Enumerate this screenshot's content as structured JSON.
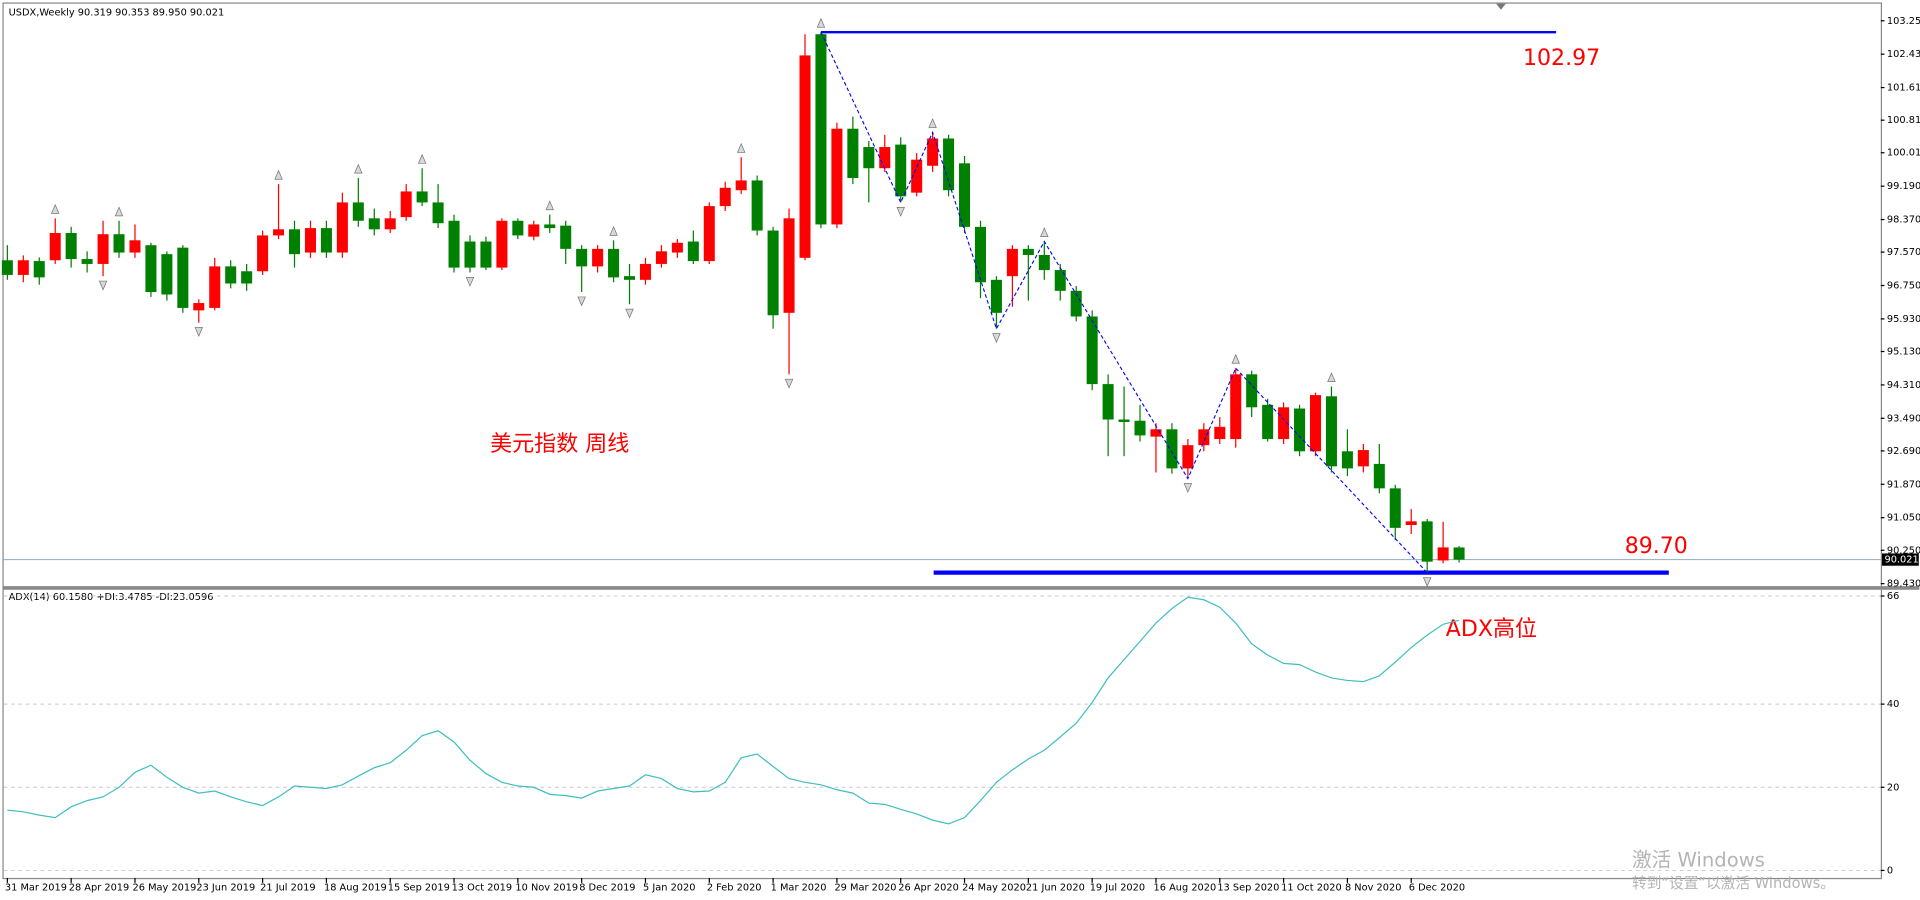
{
  "chart_data": [
    {
      "type": "candlestick",
      "title": "USDX,Weekly  90.319 90.353 89.950 90.021",
      "annotations": [
        "美元指数 周线"
      ],
      "categories": [
        "31 Mar 2019",
        null,
        null,
        null,
        "28 Apr 2019",
        null,
        null,
        null,
        "26 May 2019",
        null,
        null,
        null,
        "23 Jun 2019",
        null,
        null,
        null,
        "21 Jul 2019",
        null,
        null,
        null,
        "18 Aug 2019",
        null,
        null,
        null,
        "15 Sep 2019",
        null,
        null,
        null,
        "13 Oct 2019",
        null,
        null,
        null,
        "10 Nov 2019",
        null,
        null,
        null,
        "8 Dec 2019",
        null,
        null,
        null,
        "5 Jan 2020",
        null,
        null,
        null,
        "2 Feb 2020",
        null,
        null,
        null,
        "1 Mar 2020",
        null,
        null,
        null,
        "29 Mar 2020",
        null,
        null,
        null,
        "26 Apr 2020",
        null,
        null,
        null,
        "24 May 2020",
        null,
        null,
        null,
        "21 Jun 2020",
        null,
        null,
        null,
        "19 Jul 2020",
        null,
        null,
        null,
        "16 Aug 2020",
        null,
        null,
        null,
        "13 Sep 2020",
        null,
        null,
        null,
        "11 Oct 2020",
        null,
        null,
        null,
        "8 Nov 2020",
        null,
        null,
        null,
        "6 Dec 2020",
        null,
        null,
        null
      ],
      "open": [
        97.37,
        97.01,
        97.35,
        97.37,
        98.04,
        97.4,
        97.28,
        98.01,
        97.56,
        97.74,
        97.52,
        97.68,
        96.14,
        96.2,
        97.22,
        97.1,
        97.1,
        97.98,
        98.13,
        97.56,
        98.16,
        97.56,
        98.79,
        98.4,
        98.13,
        98.43,
        99.06,
        98.79,
        98.34,
        97.83,
        97.83,
        97.19,
        98.34,
        97.95,
        98.25,
        98.22,
        97.65,
        97.22,
        97.65,
        96.98,
        96.89,
        97.28,
        97.56,
        97.83,
        97.35,
        98.7,
        99.09,
        99.33,
        98.1,
        96.08,
        97.43,
        102.92,
        98.25,
        100.6,
        100.15,
        99.63,
        100.21,
        99.03,
        99.69,
        100.36,
        99.75,
        98.19,
        96.89,
        96.98,
        97.65,
        97.5,
        97.13,
        96.62,
        95.99,
        94.33,
        93.46,
        93.43,
        93.04,
        93.22,
        92.26,
        92.83,
        92.98,
        92.98,
        94.57,
        93.82,
        92.98,
        93.73,
        92.68,
        94.03,
        92.68,
        92.31,
        92.37,
        91.77,
        90.87,
        90.96,
        90.0,
        90.319
      ],
      "high": [
        97.74,
        97.49,
        97.44,
        98.4,
        98.19,
        97.59,
        98.34,
        98.34,
        98.25,
        97.8,
        97.59,
        97.74,
        96.41,
        97.43,
        97.37,
        97.28,
        98.1,
        99.24,
        98.34,
        98.34,
        98.34,
        99.03,
        99.39,
        98.64,
        98.58,
        99.24,
        99.63,
        99.24,
        98.49,
        97.98,
        97.95,
        98.4,
        98.4,
        98.34,
        98.49,
        98.34,
        97.74,
        97.74,
        97.86,
        97.28,
        97.43,
        97.74,
        97.89,
        98.1,
        98.79,
        99.3,
        99.9,
        99.45,
        98.19,
        98.64,
        102.92,
        102.97,
        100.75,
        100.9,
        100.3,
        100.45,
        100.39,
        100.0,
        100.51,
        100.45,
        99.93,
        98.34,
        96.98,
        97.74,
        97.74,
        97.83,
        97.28,
        96.74,
        96.14,
        94.57,
        94.27,
        93.82,
        93.37,
        93.37,
        92.98,
        93.37,
        93.52,
        94.72,
        94.66,
        93.97,
        93.88,
        93.82,
        94.12,
        94.27,
        93.22,
        92.86,
        92.86,
        91.86,
        91.26,
        91.02,
        90.95,
        90.353
      ],
      "low": [
        96.89,
        96.83,
        96.77,
        97.28,
        97.19,
        97.07,
        96.98,
        97.43,
        97.43,
        96.47,
        96.38,
        96.08,
        95.84,
        96.14,
        96.68,
        96.62,
        97.01,
        97.89,
        97.19,
        97.43,
        97.43,
        97.43,
        98.19,
        97.98,
        98.04,
        98.34,
        98.7,
        98.16,
        97.07,
        97.07,
        97.13,
        97.13,
        97.89,
        97.86,
        98.04,
        97.28,
        96.59,
        97.07,
        96.83,
        96.29,
        96.77,
        97.19,
        97.43,
        97.28,
        97.28,
        98.58,
        99.0,
        97.98,
        95.69,
        94.57,
        97.37,
        98.16,
        98.16,
        99.24,
        98.79,
        99.54,
        98.79,
        98.94,
        99.54,
        98.94,
        98.04,
        96.44,
        95.69,
        96.23,
        96.38,
        96.89,
        96.38,
        95.87,
        94.18,
        92.56,
        92.56,
        92.92,
        92.16,
        92.13,
        92.01,
        92.68,
        92.86,
        92.77,
        93.52,
        92.92,
        92.86,
        92.56,
        92.56,
        92.16,
        92.07,
        92.16,
        91.65,
        90.5,
        90.65,
        89.7,
        89.93,
        89.95
      ],
      "close": [
        97.01,
        97.37,
        96.95,
        98.04,
        97.4,
        97.28,
        98.01,
        97.56,
        97.86,
        96.59,
        96.53,
        96.2,
        96.32,
        97.22,
        96.8,
        96.8,
        97.98,
        98.13,
        97.52,
        98.16,
        97.56,
        98.79,
        98.34,
        98.13,
        98.4,
        99.06,
        98.79,
        98.28,
        97.19,
        97.19,
        97.19,
        98.34,
        97.98,
        98.25,
        98.16,
        97.65,
        97.22,
        97.65,
        96.95,
        96.89,
        97.28,
        97.59,
        97.8,
        97.35,
        98.7,
        99.15,
        99.33,
        98.1,
        96.02,
        98.4,
        102.4,
        98.25,
        100.6,
        99.39,
        99.63,
        100.15,
        98.94,
        99.84,
        100.36,
        99.09,
        98.19,
        96.83,
        96.08,
        97.65,
        97.5,
        97.13,
        96.62,
        95.99,
        94.33,
        93.46,
        93.4,
        93.07,
        93.22,
        92.26,
        92.83,
        93.22,
        93.28,
        94.57,
        93.76,
        92.98,
        93.76,
        92.68,
        94.06,
        92.31,
        92.26,
        92.71,
        91.77,
        90.8,
        90.96,
        89.97,
        90.32,
        90.021
      ],
      "up_color": "#ff0000",
      "down_color": "#008000",
      "last_price": 90.021,
      "levels": [
        102.97,
        {
          "value": 89.7,
          "label": "89.70"
        }
      ],
      "level_color": "#0000ff",
      "zigzag": [
        51,
        56,
        58,
        62,
        65,
        74,
        77,
        89
      ],
      "zigzag_color": "#0000ff",
      "fractals_up": [
        3,
        7,
        17,
        22,
        26,
        34,
        38,
        46,
        51,
        58,
        65,
        77,
        83
      ],
      "fractals_down": [
        6,
        12,
        29,
        36,
        39,
        49,
        56,
        62,
        74,
        89
      ],
      "ylim": [
        89.37,
        103.67
      ],
      "yticks": [
        {
          "value": 103.25,
          "label": "103.250"
        },
        {
          "value": 102.43,
          "label": "102.430"
        },
        {
          "value": 101.61,
          "label": "101.610"
        },
        {
          "value": 100.81,
          "label": "100.810"
        },
        {
          "value": 100.01,
          "label": "100.010"
        },
        {
          "value": 99.19,
          "label": "99.190"
        },
        {
          "value": 98.37,
          "label": "98.370"
        },
        {
          "value": 97.57,
          "label": "97.570"
        },
        {
          "value": 96.75,
          "label": "96.750"
        },
        {
          "value": 95.93,
          "label": "95.930"
        },
        {
          "value": 95.13,
          "label": "95.130"
        },
        {
          "value": 94.31,
          "label": "94.310"
        },
        {
          "value": 93.49,
          "label": "93.490"
        },
        {
          "value": 92.69,
          "label": "92.690"
        },
        {
          "value": 91.87,
          "label": "91.870"
        },
        {
          "value": 91.05,
          "label": "91.050"
        },
        {
          "value": 90.25,
          "label": "90.250"
        },
        {
          "value": 89.43,
          "label": "89.430"
        }
      ]
    },
    {
      "type": "line",
      "title": "ADX(14) 60.1580 +DI:3.4785 -DI:23.0596",
      "annotations": [
        "ADX高位"
      ],
      "values": [
        14.5,
        14.1,
        13.3,
        12.7,
        15.3,
        16.8,
        17.7,
        20.0,
        23.6,
        25.3,
        22.4,
        20.0,
        18.6,
        19.1,
        17.7,
        16.5,
        15.6,
        17.7,
        20.3,
        20.0,
        19.7,
        20.6,
        22.7,
        24.7,
        25.9,
        28.9,
        32.4,
        33.6,
        30.9,
        26.5,
        23.3,
        21.2,
        20.3,
        20.0,
        18.3,
        18.0,
        17.4,
        19.1,
        19.7,
        20.3,
        23.0,
        22.1,
        19.7,
        18.9,
        19.1,
        21.2,
        27.1,
        28.0,
        25.0,
        22.1,
        21.2,
        20.6,
        19.4,
        18.6,
        16.2,
        15.9,
        14.7,
        13.6,
        12.1,
        11.2,
        12.7,
        16.8,
        21.2,
        24.2,
        26.8,
        28.9,
        32.1,
        35.4,
        40.4,
        46.3,
        50.7,
        55.1,
        59.5,
        63.0,
        65.7,
        65.1,
        63.3,
        59.5,
        54.5,
        51.8,
        49.8,
        49.5,
        47.7,
        46.3,
        45.7,
        45.4,
        46.8,
        50.1,
        53.6,
        56.6,
        59.2,
        60.16
      ],
      "color": "#3fbfbf",
      "ylim": [
        -1.8,
        67.5
      ],
      "yticks": [
        66,
        40,
        20,
        0
      ],
      "grid": true
    }
  ],
  "watermark": {
    "title": "激活 Windows",
    "subtitle": "转到“设置”以激活 Windows。"
  }
}
